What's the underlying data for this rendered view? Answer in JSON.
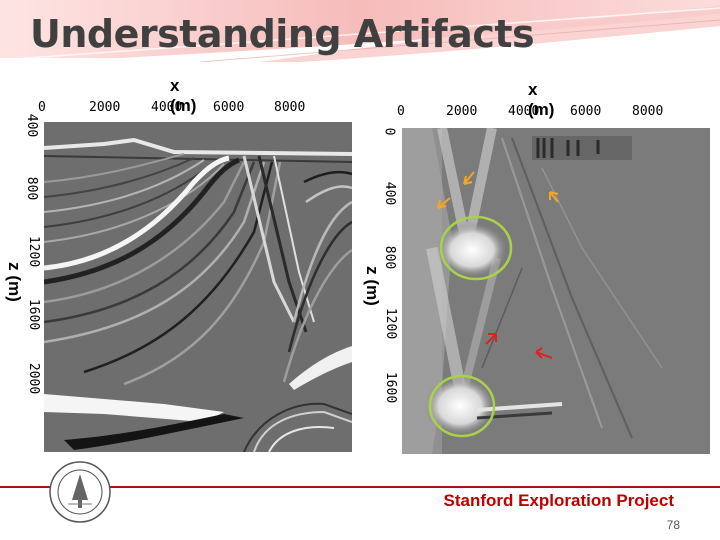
{
  "slide": {
    "title": "Understanding Artifacts",
    "footer": "Stanford Exploration Project",
    "page_number": "78"
  },
  "left_panel": {
    "x_title": "x (m)",
    "z_title": "z (m)",
    "x_ticks": [
      "0",
      "2000",
      "4000",
      "6000",
      "8000"
    ],
    "z_ticks": [
      "400",
      "800",
      "1200",
      "1600",
      "2000"
    ]
  },
  "right_panel": {
    "x_title": "x (m)",
    "z_title": "z (m)",
    "x_ticks": [
      "0",
      "2000",
      "4000",
      "6000",
      "8000"
    ],
    "z_ticks": [
      "0",
      "400",
      "800",
      "1200",
      "1600"
    ]
  },
  "colors": {
    "banner_pink": "#f4b6b4",
    "footer_red": "#c00000",
    "circle_green": "#a8d24a",
    "arrow_orange": "#f5a623",
    "arrow_red": "#e02020"
  },
  "icons": {
    "seal": "stanford-seal-icon",
    "orange_arrows": "arrow-icon",
    "red_arrows": "arrow-icon"
  }
}
